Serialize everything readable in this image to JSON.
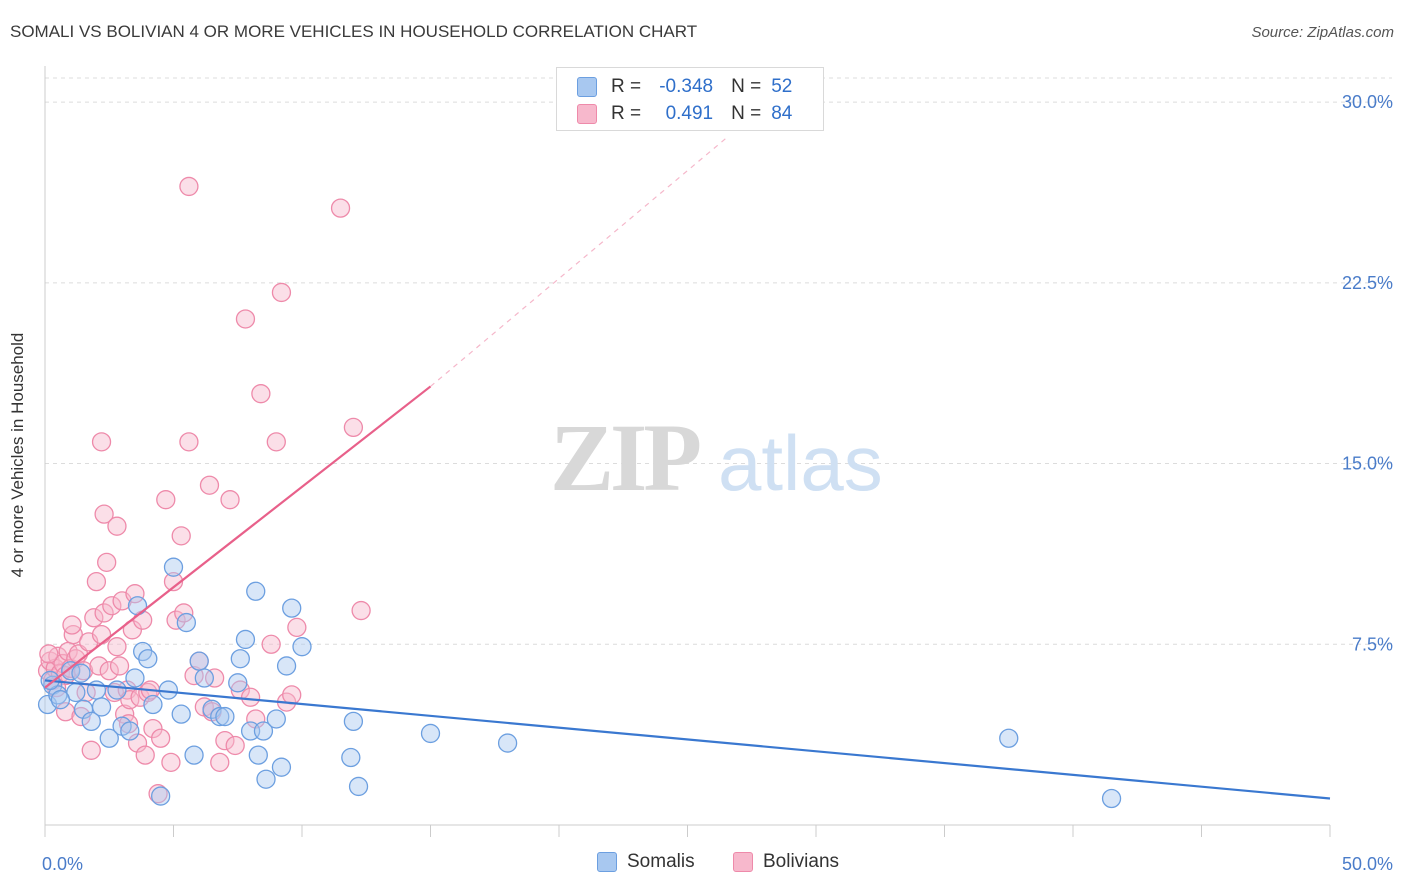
{
  "title": "SOMALI VS BOLIVIAN 4 OR MORE VEHICLES IN HOUSEHOLD CORRELATION CHART",
  "source": "Source: ZipAtlas.com",
  "watermark": {
    "zip": "ZIP",
    "atlas": "atlas"
  },
  "legend": {
    "somalis": {
      "r_label": "R =",
      "r_value": "-0.348",
      "n_label": "N =",
      "n_value": "52"
    },
    "bolivians": {
      "r_label": "R =",
      "r_value": "0.491",
      "n_label": "N =",
      "n_value": "84"
    }
  },
  "bottom_legend": {
    "somalis": "Somalis",
    "bolivians": "Bolivians"
  },
  "colors": {
    "somalis_fill": "#a8c8f0",
    "somalis_stroke": "#6c9fe0",
    "somalis_line": "#3a78d0",
    "bolivians_fill": "#f7b8cc",
    "bolivians_stroke": "#ee8aaa",
    "bolivians_line": "#e8608a",
    "tick_text": "#4a7cc9",
    "grid": "#dcdcdc"
  },
  "chart_data": {
    "type": "scatter",
    "title": "SOMALI VS BOLIVIAN 4 OR MORE VEHICLES IN HOUSEHOLD CORRELATION CHART",
    "xlabel": "",
    "ylabel": "4 or more Vehicles in Household",
    "xlim": [
      0,
      50
    ],
    "ylim": [
      0,
      31
    ],
    "x_tick_labels": [
      "0.0%",
      "50.0%"
    ],
    "y_ticks": [
      7.5,
      15.0,
      22.5,
      30.0
    ],
    "y_tick_labels": [
      "7.5%",
      "15.0%",
      "22.5%",
      "30.0%"
    ],
    "grid": "horizontal dashed",
    "legend_position": "top-center",
    "series": [
      {
        "name": "Somalis",
        "points": [
          [
            0.1,
            5.0
          ],
          [
            0.3,
            5.8
          ],
          [
            0.5,
            5.4
          ],
          [
            1.0,
            6.4
          ],
          [
            1.2,
            5.5
          ],
          [
            1.5,
            4.8
          ],
          [
            1.8,
            4.3
          ],
          [
            2.0,
            5.6
          ],
          [
            2.2,
            4.9
          ],
          [
            2.5,
            3.6
          ],
          [
            2.8,
            5.6
          ],
          [
            3.0,
            4.1
          ],
          [
            3.3,
            3.9
          ],
          [
            3.5,
            6.1
          ],
          [
            3.8,
            7.2
          ],
          [
            4.0,
            6.9
          ],
          [
            4.2,
            5.0
          ],
          [
            3.6,
            9.1
          ],
          [
            4.5,
            1.2
          ],
          [
            4.8,
            5.6
          ],
          [
            5.0,
            10.7
          ],
          [
            5.3,
            4.6
          ],
          [
            5.5,
            8.4
          ],
          [
            5.8,
            2.9
          ],
          [
            6.0,
            6.8
          ],
          [
            6.2,
            6.1
          ],
          [
            6.5,
            4.8
          ],
          [
            6.8,
            4.5
          ],
          [
            7.0,
            4.5
          ],
          [
            7.5,
            5.9
          ],
          [
            7.8,
            7.7
          ],
          [
            7.6,
            6.9
          ],
          [
            8.0,
            3.9
          ],
          [
            8.2,
            9.7
          ],
          [
            8.5,
            3.9
          ],
          [
            8.3,
            2.9
          ],
          [
            8.6,
            1.9
          ],
          [
            9.0,
            4.4
          ],
          [
            9.2,
            2.4
          ],
          [
            9.4,
            6.6
          ],
          [
            9.6,
            9.0
          ],
          [
            10.0,
            7.4
          ],
          [
            12.0,
            4.3
          ],
          [
            12.2,
            1.6
          ],
          [
            11.9,
            2.8
          ],
          [
            15.0,
            3.8
          ],
          [
            18.0,
            3.4
          ],
          [
            37.5,
            3.6
          ],
          [
            41.5,
            1.1
          ],
          [
            0.2,
            6.0
          ],
          [
            0.6,
            5.2
          ],
          [
            1.4,
            6.3
          ]
        ]
      },
      {
        "name": "Bolivians",
        "points": [
          [
            0.1,
            6.4
          ],
          [
            0.2,
            6.8
          ],
          [
            0.3,
            6.0
          ],
          [
            0.4,
            6.5
          ],
          [
            0.5,
            7.0
          ],
          [
            0.6,
            6.3
          ],
          [
            0.7,
            6.7
          ],
          [
            0.8,
            6.2
          ],
          [
            0.9,
            7.2
          ],
          [
            1.0,
            6.5
          ],
          [
            1.1,
            7.9
          ],
          [
            1.2,
            6.9
          ],
          [
            1.3,
            7.1
          ],
          [
            1.5,
            6.4
          ],
          [
            1.6,
            5.5
          ],
          [
            1.7,
            7.6
          ],
          [
            1.8,
            3.1
          ],
          [
            1.9,
            8.6
          ],
          [
            2.0,
            10.1
          ],
          [
            2.1,
            6.6
          ],
          [
            2.2,
            7.9
          ],
          [
            2.3,
            8.8
          ],
          [
            2.4,
            10.9
          ],
          [
            2.5,
            6.4
          ],
          [
            2.6,
            9.1
          ],
          [
            2.7,
            5.5
          ],
          [
            2.8,
            7.4
          ],
          [
            2.2,
            15.9
          ],
          [
            2.3,
            12.9
          ],
          [
            2.8,
            12.4
          ],
          [
            3.0,
            9.3
          ],
          [
            3.1,
            4.6
          ],
          [
            3.2,
            5.6
          ],
          [
            3.3,
            5.2
          ],
          [
            3.4,
            8.1
          ],
          [
            3.5,
            9.6
          ],
          [
            3.6,
            3.4
          ],
          [
            3.7,
            5.3
          ],
          [
            3.8,
            8.5
          ],
          [
            3.9,
            2.9
          ],
          [
            4.0,
            5.5
          ],
          [
            4.2,
            4.0
          ],
          [
            4.4,
            1.3
          ],
          [
            4.5,
            3.6
          ],
          [
            4.7,
            13.5
          ],
          [
            4.9,
            2.6
          ],
          [
            5.0,
            10.1
          ],
          [
            5.1,
            8.5
          ],
          [
            5.3,
            12.0
          ],
          [
            5.4,
            8.8
          ],
          [
            5.6,
            15.9
          ],
          [
            5.8,
            6.2
          ],
          [
            6.0,
            6.8
          ],
          [
            6.2,
            4.9
          ],
          [
            6.4,
            14.1
          ],
          [
            6.6,
            6.1
          ],
          [
            6.8,
            2.6
          ],
          [
            7.0,
            3.5
          ],
          [
            7.2,
            13.5
          ],
          [
            7.4,
            3.3
          ],
          [
            7.6,
            5.6
          ],
          [
            7.8,
            21.0
          ],
          [
            8.0,
            5.3
          ],
          [
            8.2,
            4.4
          ],
          [
            8.4,
            17.9
          ],
          [
            8.8,
            7.5
          ],
          [
            9.0,
            15.9
          ],
          [
            9.2,
            22.1
          ],
          [
            9.4,
            5.1
          ],
          [
            9.6,
            5.4
          ],
          [
            9.8,
            8.2
          ],
          [
            11.5,
            25.6
          ],
          [
            12.0,
            16.5
          ],
          [
            12.3,
            8.9
          ],
          [
            5.6,
            26.5
          ],
          [
            0.8,
            4.7
          ],
          [
            1.4,
            4.5
          ],
          [
            2.9,
            6.6
          ],
          [
            4.1,
            5.6
          ],
          [
            0.15,
            7.1
          ],
          [
            0.45,
            5.7
          ],
          [
            1.05,
            8.3
          ],
          [
            3.25,
            4.2
          ],
          [
            6.5,
            4.7
          ]
        ]
      }
    ],
    "trendlines": [
      {
        "name": "Somalis",
        "from": [
          0,
          6.0
        ],
        "to": [
          50,
          1.1
        ]
      },
      {
        "name": "Bolivians",
        "from": [
          0,
          5.7
        ],
        "to": [
          15,
          18.2
        ],
        "dashed_to": [
          26.5,
          28.5
        ]
      }
    ]
  }
}
